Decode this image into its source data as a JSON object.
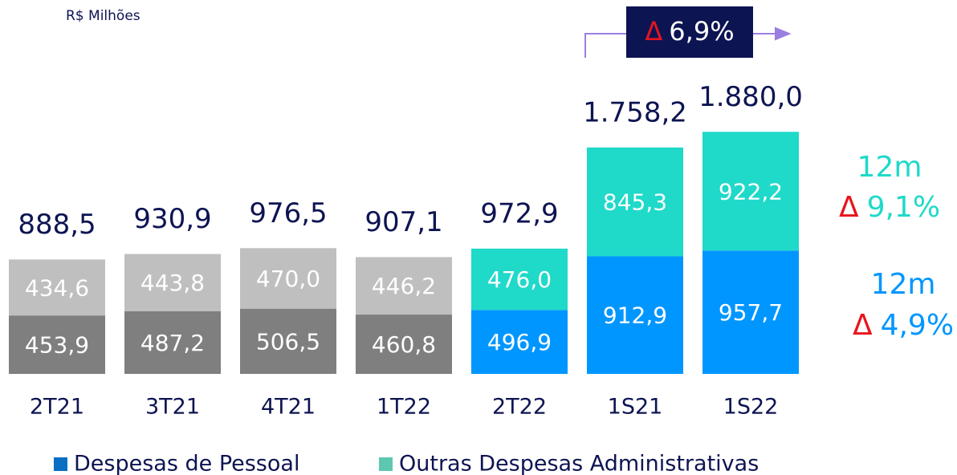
{
  "chart_data": {
    "type": "stacked_bar",
    "unit_label": "R$ Milhões",
    "categories": [
      "2T21",
      "3T21",
      "4T21",
      "1T22",
      "2T22",
      "1S21",
      "1S22"
    ],
    "series": [
      {
        "name": "Despesas de Pessoal",
        "color": "#0a6fc2",
        "colors": [
          "#7f7f7f",
          "#7f7f7f",
          "#7f7f7f",
          "#7f7f7f",
          "#0096ff",
          "#0096ff",
          "#0096ff"
        ],
        "values": [
          453.9,
          487.2,
          506.5,
          460.8,
          496.9,
          912.9,
          957.7
        ],
        "value_labels": [
          "453,9",
          "487,2",
          "506,5",
          "460,8",
          "496,9",
          "912,9",
          "957,7"
        ]
      },
      {
        "name": "Outras Despesas Administrativas",
        "color": "#5ec7b0",
        "colors": [
          "#bfbfbf",
          "#bfbfbf",
          "#bfbfbf",
          "#bfbfbf",
          "#1fd9c9",
          "#1fd9c9",
          "#1fd9c9"
        ],
        "values": [
          434.6,
          443.8,
          470.0,
          446.2,
          476.0,
          845.3,
          922.2
        ],
        "value_labels": [
          "434,6",
          "443,8",
          "470,0",
          "446,2",
          "476,0",
          "845,3",
          "922,2"
        ]
      }
    ],
    "totals": {
      "values": [
        888.5,
        930.9,
        976.5,
        907.1,
        972.9,
        1758.2,
        1880.0
      ],
      "value_labels": [
        "888,5",
        "930,9",
        "976,5",
        "907,1",
        "972,9",
        "1.758,2",
        "1.880,0"
      ]
    },
    "ylim": [
      0,
      2000
    ],
    "annotations": [
      {
        "symbol": "Δ",
        "text": "6,9%"
      },
      {
        "period": "12m",
        "symbol": "Δ",
        "text": "9,1%",
        "color": "#1fd9c9"
      },
      {
        "period": "12m",
        "symbol": "Δ",
        "text": "4,9%",
        "color": "#0096ff"
      }
    ]
  }
}
